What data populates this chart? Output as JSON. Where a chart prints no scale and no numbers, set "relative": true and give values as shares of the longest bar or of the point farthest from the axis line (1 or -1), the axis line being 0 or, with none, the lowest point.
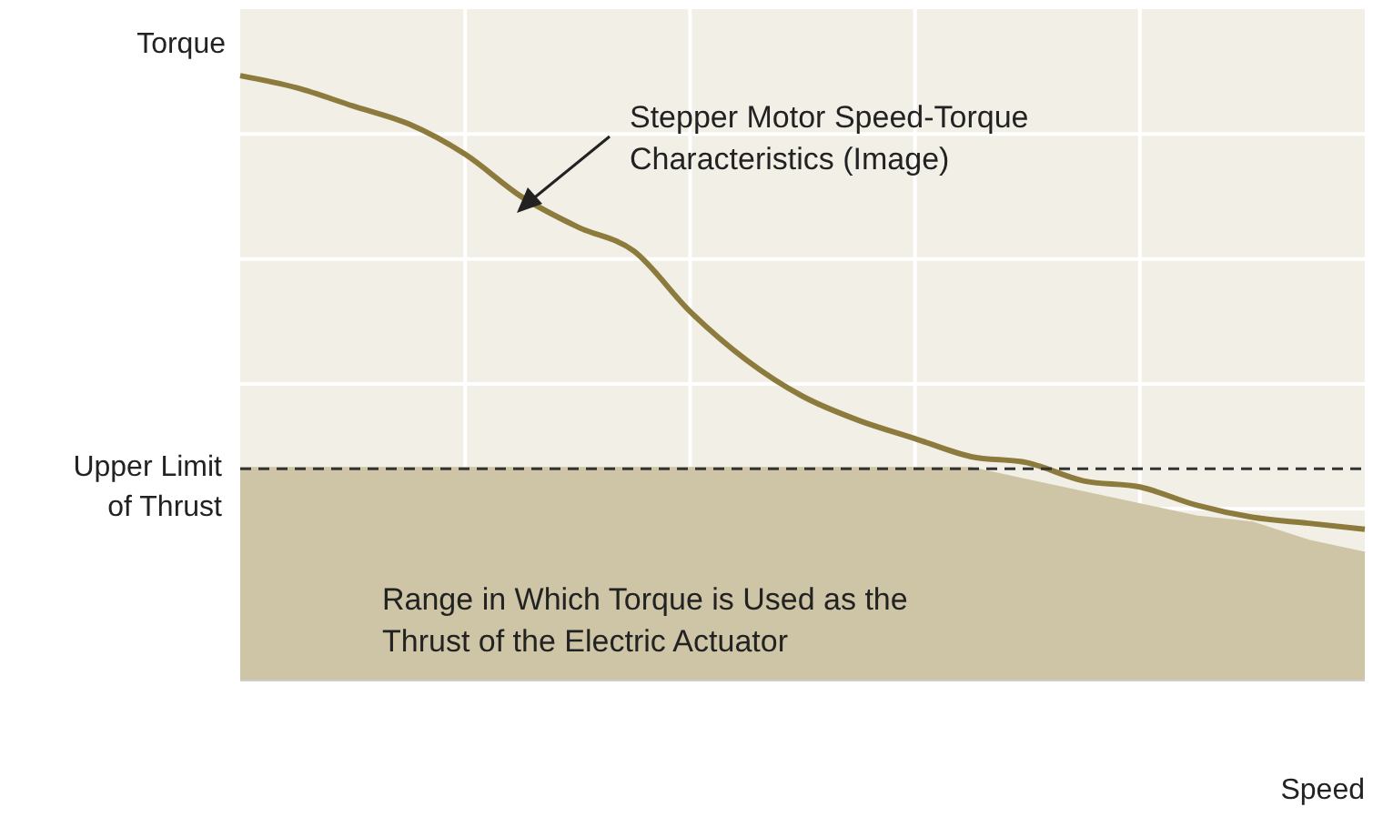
{
  "chart_data": {
    "type": "line",
    "relative": true,
    "ylabel": "Torque",
    "xlabel": "Speed",
    "categories": [
      null,
      null,
      null,
      null,
      null,
      null,
      null,
      null,
      null,
      null,
      null,
      null,
      null,
      null,
      null,
      null,
      null,
      null,
      null,
      null,
      null
    ],
    "series": [
      {
        "type": "area",
        "color": "#cdc5a6",
        "values": [
          0.35,
          0.35,
          0.35,
          0.35,
          0.35,
          0.35,
          0.35,
          0.35,
          0.35,
          0.35,
          0.35,
          0.35,
          0.35,
          0.35,
          0.33,
          0.31,
          0.29,
          0.27,
          0.26,
          0.23,
          0.21
        ]
      },
      {
        "color": "#8c7b3c",
        "values": [
          1,
          0.98,
          0.95,
          0.92,
          0.87,
          0.8,
          0.75,
          0.71,
          0.61,
          0.53,
          0.47,
          0.43,
          0.4,
          0.37,
          0.36,
          0.33,
          0.32,
          0.29,
          0.27,
          0.26,
          0.25
        ]
      }
    ],
    "ref_lines": [
      {
        "axis": "y",
        "value": 0.35,
        "label": "Upper Limit of Thrust",
        "line_style": "dashed",
        "color": "#333333"
      }
    ],
    "annotations": [
      "Stepper Motor Speed-Torque Characteristics (Image)",
      "Range in Which Torque is Used as the Thrust of the Electric Actuator"
    ],
    "grid": true
  }
}
